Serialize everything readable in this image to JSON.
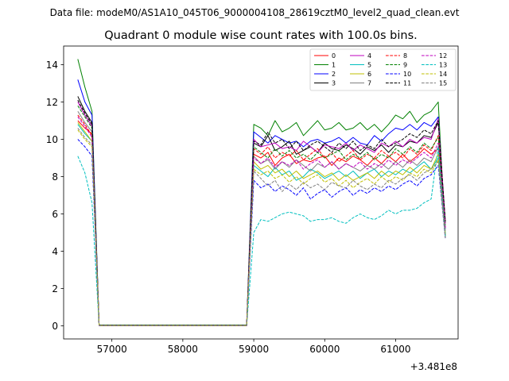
{
  "chart_data": {
    "type": "line",
    "suptitle": "Data file: modeM0/AS1A10_045T06_9000004108_28619cztM0_level2_quad_clean.evt",
    "title": "Quadrant 0 module wise count rates with 100.0s bins.",
    "xlabel": "",
    "ylabel": "",
    "x_offset_label": "+3.481e8",
    "x_offset": 348100000,
    "xlim": [
      56320,
      61880
    ],
    "ylim": [
      -0.7,
      15
    ],
    "xticks": [
      57000,
      58000,
      59000,
      60000,
      61000
    ],
    "xtick_labels": [
      "57000",
      "58000",
      "59000",
      "60000",
      "61000"
    ],
    "yticks": [
      0,
      2,
      4,
      6,
      8,
      10,
      12,
      14
    ],
    "ytick_labels": [
      "0",
      "2",
      "4",
      "6",
      "8",
      "10",
      "12",
      "14"
    ],
    "grid": false,
    "legend_position": "upper-right",
    "legend_columns": 4,
    "x": [
      56520,
      56620,
      56720,
      56820,
      58900,
      59000,
      59100,
      59200,
      59300,
      59400,
      59500,
      59600,
      59700,
      59800,
      59900,
      60000,
      60100,
      60200,
      60300,
      60400,
      60500,
      60600,
      60700,
      60800,
      60900,
      61000,
      61100,
      61200,
      61300,
      61400,
      61500,
      61600,
      61700
    ],
    "series": [
      {
        "name": "0",
        "color": "#ff0000",
        "dash": "solid",
        "values": [
          11.0,
          10.6,
          10.3,
          0.02,
          0.02,
          9.2,
          9.0,
          9.3,
          8.6,
          9.0,
          9.2,
          8.7,
          8.9,
          8.8,
          9.0,
          9.1,
          8.6,
          9.0,
          8.8,
          9.1,
          8.9,
          8.6,
          9.0,
          8.7,
          9.1,
          8.8,
          9.2,
          8.8,
          9.1,
          9.5,
          9.2,
          9.5,
          5.5
        ]
      },
      {
        "name": "1",
        "color": "#008000",
        "dash": "solid",
        "values": [
          14.3,
          12.8,
          11.5,
          0.05,
          0.05,
          10.8,
          10.6,
          10.2,
          11.0,
          10.4,
          10.6,
          10.9,
          10.2,
          10.6,
          11.0,
          10.5,
          10.6,
          10.9,
          10.5,
          10.6,
          10.9,
          10.5,
          10.8,
          10.4,
          10.8,
          11.3,
          11.1,
          11.5,
          10.9,
          11.3,
          11.5,
          12.0,
          4.8
        ]
      },
      {
        "name": "2",
        "color": "#0000ff",
        "dash": "solid",
        "values": [
          13.2,
          12.0,
          11.3,
          0.04,
          0.04,
          10.4,
          10.1,
          9.8,
          10.2,
          10.0,
          9.8,
          9.9,
          9.6,
          9.9,
          10.0,
          9.8,
          9.9,
          10.1,
          9.8,
          10.1,
          9.8,
          9.7,
          10.2,
          9.9,
          10.3,
          10.6,
          10.5,
          10.8,
          10.5,
          10.9,
          10.7,
          11.2,
          5.2
        ]
      },
      {
        "name": "3",
        "color": "#000000",
        "dash": "solid",
        "values": [
          12.3,
          11.5,
          10.9,
          0.03,
          0.03,
          9.8,
          9.6,
          10.2,
          9.4,
          9.6,
          9.9,
          9.2,
          9.4,
          9.6,
          9.3,
          9.8,
          9.5,
          9.4,
          9.7,
          9.5,
          9.2,
          9.6,
          9.4,
          9.7,
          9.3,
          9.7,
          9.6,
          9.9,
          9.8,
          10.2,
          10.1,
          10.9,
          5.6
        ]
      },
      {
        "name": "4",
        "color": "#bf00bf",
        "dash": "solid",
        "values": [
          12.0,
          11.3,
          10.7,
          0.03,
          0.03,
          10.0,
          9.6,
          9.7,
          9.8,
          9.5,
          9.6,
          9.4,
          9.9,
          9.6,
          9.3,
          9.7,
          9.6,
          9.5,
          9.8,
          9.4,
          9.7,
          9.5,
          9.3,
          9.8,
          9.6,
          9.9,
          9.6,
          10.0,
          9.8,
          10.1,
          10.0,
          11.1,
          5.5
        ]
      },
      {
        "name": "5",
        "color": "#00bfbf",
        "dash": "solid",
        "values": [
          10.8,
          10.3,
          9.9,
          0.03,
          0.03,
          8.6,
          8.3,
          8.0,
          8.5,
          8.1,
          8.3,
          7.8,
          8.0,
          8.4,
          8.2,
          7.9,
          8.1,
          8.3,
          8.0,
          8.3,
          7.9,
          8.2,
          8.4,
          8.0,
          8.3,
          8.1,
          8.4,
          8.2,
          8.5,
          8.8,
          8.4,
          9.0,
          4.8
        ]
      },
      {
        "name": "6",
        "color": "#bfbf00",
        "dash": "solid",
        "values": [
          10.9,
          10.4,
          9.9,
          0.03,
          0.03,
          8.8,
          8.4,
          8.6,
          8.2,
          8.4,
          8.0,
          8.3,
          7.9,
          8.1,
          8.3,
          8.0,
          8.2,
          7.8,
          8.1,
          7.8,
          8.0,
          8.2,
          7.9,
          8.3,
          8.0,
          8.3,
          8.1,
          8.5,
          8.2,
          8.6,
          8.4,
          9.2,
          4.9
        ]
      },
      {
        "name": "7",
        "color": "#808080",
        "dash": "solid",
        "values": [
          11.5,
          10.9,
          10.4,
          0.03,
          0.03,
          9.1,
          8.7,
          8.9,
          8.4,
          8.8,
          8.5,
          8.9,
          8.6,
          8.3,
          8.7,
          8.5,
          8.8,
          8.4,
          8.7,
          8.5,
          8.3,
          8.6,
          8.4,
          8.7,
          8.4,
          8.8,
          8.5,
          8.9,
          8.6,
          9.0,
          8.8,
          9.6,
          5.1
        ]
      },
      {
        "name": "8",
        "color": "#ff0000",
        "dash": "dashed",
        "values": [
          11.3,
          10.8,
          10.2,
          0.02,
          0.02,
          9.5,
          9.2,
          9.6,
          9.0,
          9.3,
          9.1,
          9.4,
          8.9,
          9.2,
          9.5,
          9.0,
          9.3,
          8.8,
          9.1,
          9.4,
          8.9,
          9.2,
          9.0,
          9.4,
          9.1,
          9.3,
          9.0,
          9.5,
          9.2,
          9.7,
          9.4,
          10.2,
          5.3
        ]
      },
      {
        "name": "9",
        "color": "#008000",
        "dash": "dashed",
        "values": [
          11.8,
          11.2,
          10.6,
          0.03,
          0.03,
          9.6,
          9.3,
          9.0,
          9.5,
          9.1,
          9.4,
          9.0,
          9.2,
          8.9,
          9.3,
          9.0,
          9.2,
          9.4,
          8.9,
          9.2,
          9.0,
          9.3,
          8.9,
          9.2,
          9.0,
          9.5,
          9.2,
          9.6,
          9.3,
          9.8,
          9.5,
          10.1,
          5.4
        ]
      },
      {
        "name": "10",
        "color": "#0000ff",
        "dash": "dashed",
        "values": [
          10.0,
          9.6,
          9.1,
          0.02,
          0.02,
          7.8,
          7.4,
          7.6,
          7.2,
          7.5,
          7.3,
          7.0,
          7.4,
          6.8,
          7.1,
          7.3,
          6.9,
          7.2,
          7.4,
          7.0,
          7.3,
          7.1,
          7.4,
          7.2,
          7.5,
          7.3,
          7.6,
          7.8,
          7.5,
          7.9,
          8.1,
          8.6,
          4.7
        ]
      },
      {
        "name": "11",
        "color": "#000000",
        "dash": "dashed",
        "values": [
          12.1,
          11.4,
          10.8,
          0.03,
          0.03,
          9.9,
          9.7,
          10.4,
          9.8,
          10.0,
          9.5,
          9.9,
          9.4,
          9.7,
          9.9,
          9.6,
          9.3,
          9.8,
          9.5,
          9.9,
          9.4,
          9.7,
          9.5,
          10.0,
          9.6,
          9.8,
          10.0,
          10.3,
          10.1,
          10.5,
          10.3,
          11.0,
          5.6
        ]
      },
      {
        "name": "12",
        "color": "#bf00bf",
        "dash": "dashed",
        "values": [
          11.2,
          10.7,
          10.1,
          0.02,
          0.02,
          9.0,
          8.7,
          9.0,
          8.5,
          8.8,
          8.6,
          8.9,
          8.4,
          8.7,
          8.9,
          8.5,
          8.8,
          8.4,
          8.7,
          8.5,
          8.8,
          8.4,
          8.7,
          8.5,
          8.9,
          8.6,
          8.9,
          8.7,
          9.0,
          9.3,
          9.0,
          9.8,
          5.2
        ]
      },
      {
        "name": "13",
        "color": "#00bfbf",
        "dash": "dashed",
        "values": [
          9.1,
          8.2,
          6.6,
          0.02,
          0.02,
          5.0,
          5.7,
          5.6,
          5.8,
          6.0,
          6.1,
          6.0,
          5.9,
          5.6,
          5.7,
          5.7,
          5.8,
          5.6,
          5.5,
          5.8,
          6.0,
          5.8,
          5.7,
          5.9,
          6.2,
          6.0,
          6.2,
          6.2,
          6.3,
          6.6,
          6.8,
          9.6,
          4.9
        ]
      },
      {
        "name": "14",
        "color": "#bfbf00",
        "dash": "dashed",
        "values": [
          10.5,
          10.0,
          9.6,
          0.02,
          0.02,
          8.4,
          8.1,
          8.3,
          7.9,
          8.1,
          7.7,
          8.0,
          7.6,
          7.9,
          8.1,
          7.7,
          7.9,
          7.5,
          7.8,
          7.4,
          7.7,
          7.9,
          7.6,
          8.0,
          7.7,
          8.0,
          7.8,
          8.2,
          8.0,
          8.4,
          8.2,
          8.9,
          4.8
        ]
      },
      {
        "name": "15",
        "color": "#808080",
        "dash": "dashed",
        "values": [
          10.6,
          10.1,
          9.7,
          0.02,
          0.02,
          8.3,
          7.9,
          7.5,
          7.8,
          7.2,
          7.6,
          7.3,
          7.7,
          7.4,
          7.6,
          7.3,
          7.7,
          7.5,
          7.4,
          7.8,
          7.5,
          7.3,
          7.6,
          7.4,
          7.8,
          7.6,
          7.9,
          8.1,
          7.8,
          8.2,
          8.4,
          8.8,
          4.7
        ]
      }
    ]
  }
}
